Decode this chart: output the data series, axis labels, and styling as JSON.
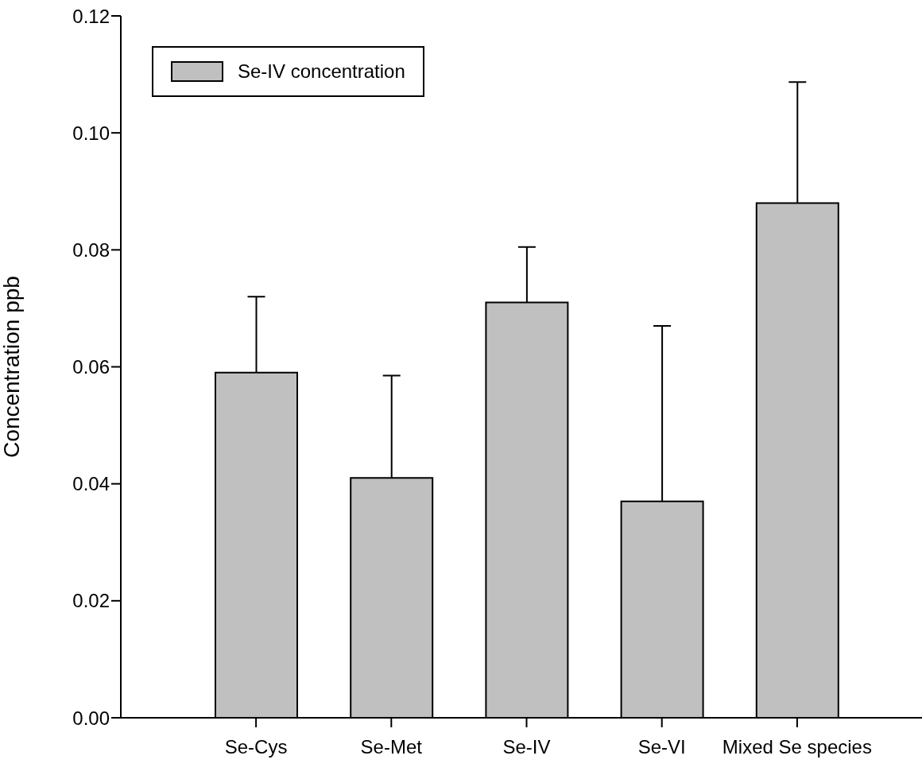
{
  "chart_data": {
    "type": "bar",
    "ylabel": "Concentration ppb",
    "categories": [
      "Se-Cys",
      "Se-Met",
      "Se-IV",
      "Se-VI",
      "Mixed Se species"
    ],
    "series": [
      {
        "name": "Se-IV concentration",
        "color": "#c0c0c0",
        "values": [
          0.059,
          0.041,
          0.071,
          0.037,
          0.088
        ],
        "errors": [
          [
            0.059,
            0.072
          ],
          [
            0.041,
            0.0585
          ],
          [
            0.071,
            0.0805
          ],
          [
            0.037,
            0.067
          ],
          [
            0.088,
            0.1087
          ]
        ]
      }
    ],
    "ylim": [
      0,
      0.12
    ],
    "yticks": [
      {
        "value": 0,
        "label": "0.00"
      },
      {
        "value": 0.02,
        "label": "0.02"
      },
      {
        "value": 0.04,
        "label": "0.04"
      },
      {
        "value": 0.06,
        "label": "0.06"
      },
      {
        "value": 0.08,
        "label": "0.08"
      },
      {
        "value": 0.1,
        "label": "0.10"
      },
      {
        "value": 0.12,
        "label": "0.12"
      }
    ],
    "grid": false,
    "legend": "top left"
  }
}
